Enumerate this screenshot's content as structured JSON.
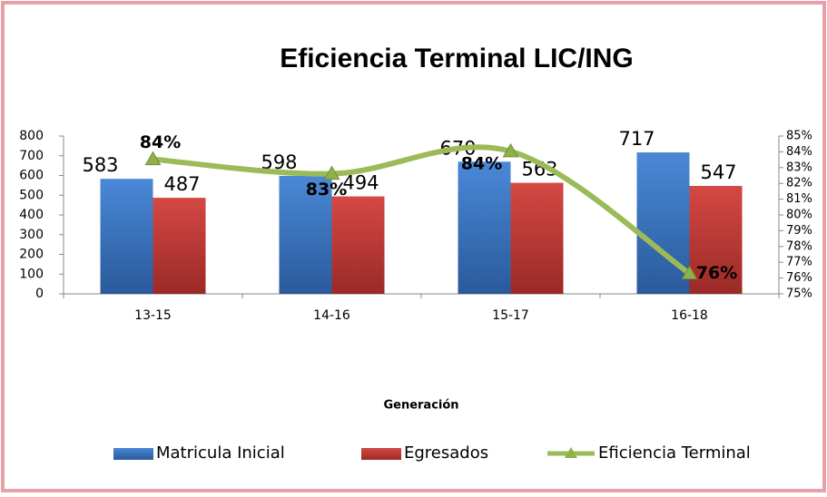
{
  "chart_data": {
    "type": "bar_line",
    "title": "Eficiencia Terminal LIC/ING",
    "x_label": "Generación",
    "categories": [
      "13-15",
      "14-16",
      "15-17",
      "16-18"
    ],
    "series": [
      {
        "name": "Matricula Inicial",
        "color": "#3b78c6",
        "values": [
          583,
          598,
          670,
          717
        ]
      },
      {
        "name": "Egresados",
        "color": "#c83b37",
        "values": [
          487,
          494,
          563,
          547
        ]
      },
      {
        "name": "Eficiencia Terminal",
        "color": "#9bbb59",
        "axis": "y2",
        "type": "line",
        "values": [
          83.53,
          82.61,
          84.03,
          76.29
        ],
        "value_labels": [
          "84%",
          "83%",
          "84%",
          "76%"
        ]
      }
    ],
    "ylim": [
      0,
      800
    ],
    "yticks": [
      0,
      100,
      200,
      300,
      400,
      500,
      600,
      700,
      800
    ],
    "y2lim": [
      75,
      85
    ],
    "y2ticks": [
      {
        "value": 75,
        "label": "75%"
      },
      {
        "value": 76,
        "label": "76%"
      },
      {
        "value": 77,
        "label": "77%"
      },
      {
        "value": 78,
        "label": "78%"
      },
      {
        "value": 79,
        "label": "79%"
      },
      {
        "value": 80,
        "label": "80%"
      },
      {
        "value": 81,
        "label": "81%"
      },
      {
        "value": 82,
        "label": "82%"
      },
      {
        "value": 83,
        "label": "83%"
      },
      {
        "value": 84,
        "label": "84%"
      },
      {
        "value": 85,
        "label": "85%"
      }
    ],
    "legend": "bottom"
  }
}
